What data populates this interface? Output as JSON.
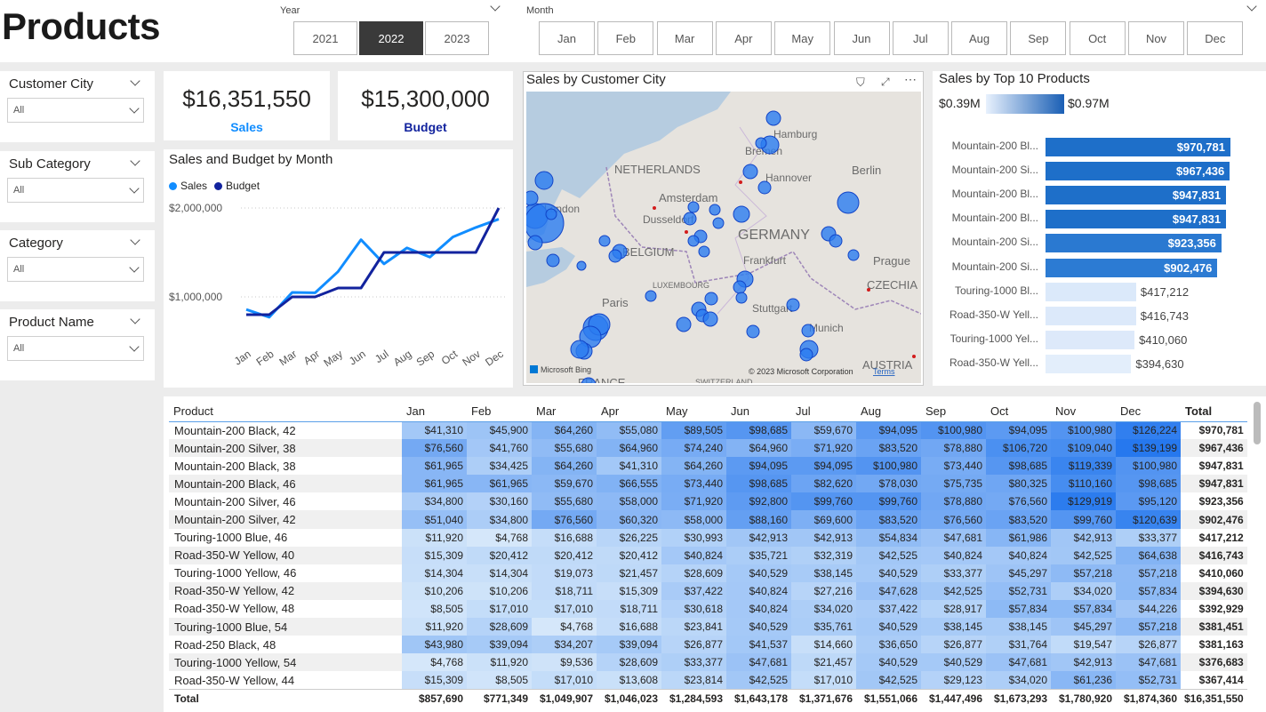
{
  "page_title": "Products",
  "year_slicer": {
    "label": "Year",
    "options": [
      "2021",
      "2022",
      "2023"
    ],
    "selected": "2022"
  },
  "month_slicer": {
    "label": "Month",
    "options": [
      "Jan",
      "Feb",
      "Mar",
      "Apr",
      "May",
      "Jun",
      "Jul",
      "Aug",
      "Sep",
      "Oct",
      "Nov",
      "Dec"
    ]
  },
  "slicers": [
    {
      "title": "Customer City",
      "value": "All"
    },
    {
      "title": "Sub Category",
      "value": "All"
    },
    {
      "title": "Category",
      "value": "All"
    },
    {
      "title": "Product Name",
      "value": "All"
    }
  ],
  "kpis": [
    {
      "value": "$16,351,550",
      "label": "Sales",
      "color": "#118dff"
    },
    {
      "value": "$15,300,000",
      "label": "Budget",
      "color": "#12239e"
    }
  ],
  "line_chart": {
    "title": "Sales and Budget by Month",
    "legend": [
      "Sales",
      "Budget"
    ],
    "colors": [
      "#118dff",
      "#12239e"
    ],
    "chart_data": {
      "type": "line",
      "categories": [
        "Jan",
        "Feb",
        "Mar",
        "Apr",
        "May",
        "Jun",
        "Jul",
        "Aug",
        "Sep",
        "Oct",
        "Nov",
        "Dec"
      ],
      "ytick_labels": [
        "$1,000,000",
        "$2,000,000"
      ],
      "yticks": [
        1000000,
        2000000
      ],
      "series": [
        {
          "name": "Sales",
          "values": [
            857690,
            771349,
            1049907,
            1046023,
            1284593,
            1643178,
            1371676,
            1551066,
            1447496,
            1673293,
            1780920,
            1874360
          ]
        },
        {
          "name": "Budget",
          "values": [
            800000,
            800000,
            1000000,
            1000000,
            1100000,
            1100000,
            1500000,
            1500000,
            1500000,
            1500000,
            1500000,
            2000000
          ]
        }
      ]
    }
  },
  "map": {
    "title": "Sales by Customer City",
    "places": [
      "Hamburg",
      "Bremen",
      "NETHERLANDS",
      "Hannover",
      "Berlin",
      "Amsterdam",
      "London",
      "Dusseldorf",
      "GERMANY",
      "BELGIUM",
      "Frankfurt",
      "Prague",
      "LUXEMBOURG",
      "CZECHIA",
      "Paris",
      "Stuttgart",
      "Munich",
      "AUSTRIA",
      "FRANCE",
      "SWITZERLAND"
    ],
    "attribution": "© 2023 Microsoft Corporation",
    "terms": "Terms",
    "logo": "Microsoft Bing"
  },
  "bar_chart": {
    "title": "Sales by Top 10 Products",
    "scale_min": "$0.39M",
    "scale_max": "$0.97M",
    "chart_data": {
      "type": "bar",
      "categories": [
        "Mountain-200 Bl...",
        "Mountain-200 Si...",
        "Mountain-200 Bl...",
        "Mountain-200 Bl...",
        "Mountain-200 Si...",
        "Mountain-200 Si...",
        "Touring-1000 Bl...",
        "Road-350-W Yell...",
        "Touring-1000 Yel...",
        "Road-350-W Yell..."
      ],
      "values": [
        970781,
        967436,
        947831,
        947831,
        923356,
        902476,
        417212,
        416743,
        410060,
        394630
      ],
      "labels": [
        "$970,781",
        "$967,436",
        "$947,831",
        "$947,831",
        "$923,356",
        "$902,476",
        "$417,212",
        "$416,743",
        "$410,060",
        "$394,630"
      ]
    }
  },
  "matrix": {
    "headers": [
      "Product",
      "Jan",
      "Feb",
      "Mar",
      "Apr",
      "May",
      "Jun",
      "Jul",
      "Aug",
      "Sep",
      "Oct",
      "Nov",
      "Dec",
      "Total"
    ],
    "rows": [
      [
        "Mountain-200 Black, 42",
        "$41,310",
        "$45,900",
        "$64,260",
        "$55,080",
        "$89,505",
        "$98,685",
        "$59,670",
        "$94,095",
        "$100,980",
        "$94,095",
        "$100,980",
        "$126,224",
        "$970,781"
      ],
      [
        "Mountain-200 Silver, 38",
        "$76,560",
        "$41,760",
        "$55,680",
        "$64,960",
        "$74,240",
        "$64,960",
        "$71,920",
        "$83,520",
        "$78,880",
        "$106,720",
        "$109,040",
        "$139,199",
        "$967,436"
      ],
      [
        "Mountain-200 Black, 38",
        "$61,965",
        "$34,425",
        "$64,260",
        "$41,310",
        "$64,260",
        "$94,095",
        "$94,095",
        "$100,980",
        "$73,440",
        "$98,685",
        "$119,339",
        "$100,980",
        "$947,831"
      ],
      [
        "Mountain-200 Black, 46",
        "$61,965",
        "$61,965",
        "$59,670",
        "$66,555",
        "$73,440",
        "$98,685",
        "$82,620",
        "$78,030",
        "$75,735",
        "$80,325",
        "$110,160",
        "$98,685",
        "$947,831"
      ],
      [
        "Mountain-200 Silver, 46",
        "$34,800",
        "$30,160",
        "$55,680",
        "$58,000",
        "$71,920",
        "$92,800",
        "$99,760",
        "$99,760",
        "$78,880",
        "$76,560",
        "$129,919",
        "$95,120",
        "$923,356"
      ],
      [
        "Mountain-200 Silver, 42",
        "$51,040",
        "$34,800",
        "$76,560",
        "$60,320",
        "$58,000",
        "$88,160",
        "$69,600",
        "$83,520",
        "$76,560",
        "$83,520",
        "$99,760",
        "$120,639",
        "$902,476"
      ],
      [
        "Touring-1000 Blue, 46",
        "$11,920",
        "$4,768",
        "$16,688",
        "$26,225",
        "$30,993",
        "$42,913",
        "$42,913",
        "$54,834",
        "$47,681",
        "$61,986",
        "$42,913",
        "$33,377",
        "$417,212"
      ],
      [
        "Road-350-W Yellow, 40",
        "$15,309",
        "$20,412",
        "$20,412",
        "$20,412",
        "$40,824",
        "$35,721",
        "$32,319",
        "$42,525",
        "$40,824",
        "$40,824",
        "$42,525",
        "$64,638",
        "$416,743"
      ],
      [
        "Touring-1000 Yellow, 46",
        "$14,304",
        "$14,304",
        "$19,073",
        "$21,457",
        "$28,609",
        "$40,529",
        "$38,145",
        "$40,529",
        "$33,377",
        "$45,297",
        "$57,218",
        "$57,218",
        "$410,060"
      ],
      [
        "Road-350-W Yellow, 42",
        "$10,206",
        "$10,206",
        "$18,711",
        "$15,309",
        "$37,422",
        "$40,824",
        "$27,216",
        "$47,628",
        "$42,525",
        "$52,731",
        "$34,020",
        "$57,834",
        "$394,630"
      ],
      [
        "Road-350-W Yellow, 48",
        "$8,505",
        "$17,010",
        "$17,010",
        "$18,711",
        "$30,618",
        "$40,824",
        "$34,020",
        "$37,422",
        "$28,917",
        "$57,834",
        "$57,834",
        "$44,226",
        "$392,929"
      ],
      [
        "Touring-1000 Blue, 54",
        "$11,920",
        "$28,609",
        "$4,768",
        "$16,688",
        "$23,841",
        "$40,529",
        "$35,761",
        "$40,529",
        "$38,145",
        "$38,145",
        "$45,297",
        "$57,218",
        "$381,451"
      ],
      [
        "Road-250 Black, 48",
        "$43,980",
        "$39,094",
        "$34,207",
        "$39,094",
        "$26,877",
        "$41,537",
        "$14,660",
        "$36,650",
        "$26,877",
        "$31,764",
        "$19,547",
        "$26,877",
        "$381,163"
      ],
      [
        "Touring-1000 Yellow, 54",
        "$4,768",
        "$11,920",
        "$9,536",
        "$28,609",
        "$33,377",
        "$47,681",
        "$21,457",
        "$40,529",
        "$40,529",
        "$47,681",
        "$42,913",
        "$47,681",
        "$376,683"
      ],
      [
        "Road-350-W Yellow, 44",
        "$15,309",
        "$8,505",
        "$17,010",
        "$13,608",
        "$23,814",
        "$42,525",
        "$17,010",
        "$42,525",
        "$29,123",
        "$34,020",
        "$61,236",
        "$52,731",
        "$367,414"
      ]
    ],
    "total_row": [
      "Total",
      "$857,690",
      "$771,349",
      "$1,049,907",
      "$1,046,023",
      "$1,284,593",
      "$1,643,178",
      "$1,371,676",
      "$1,551,066",
      "$1,447,496",
      "$1,673,293",
      "$1,780,920",
      "$1,874,360",
      "$16,351,550"
    ]
  }
}
